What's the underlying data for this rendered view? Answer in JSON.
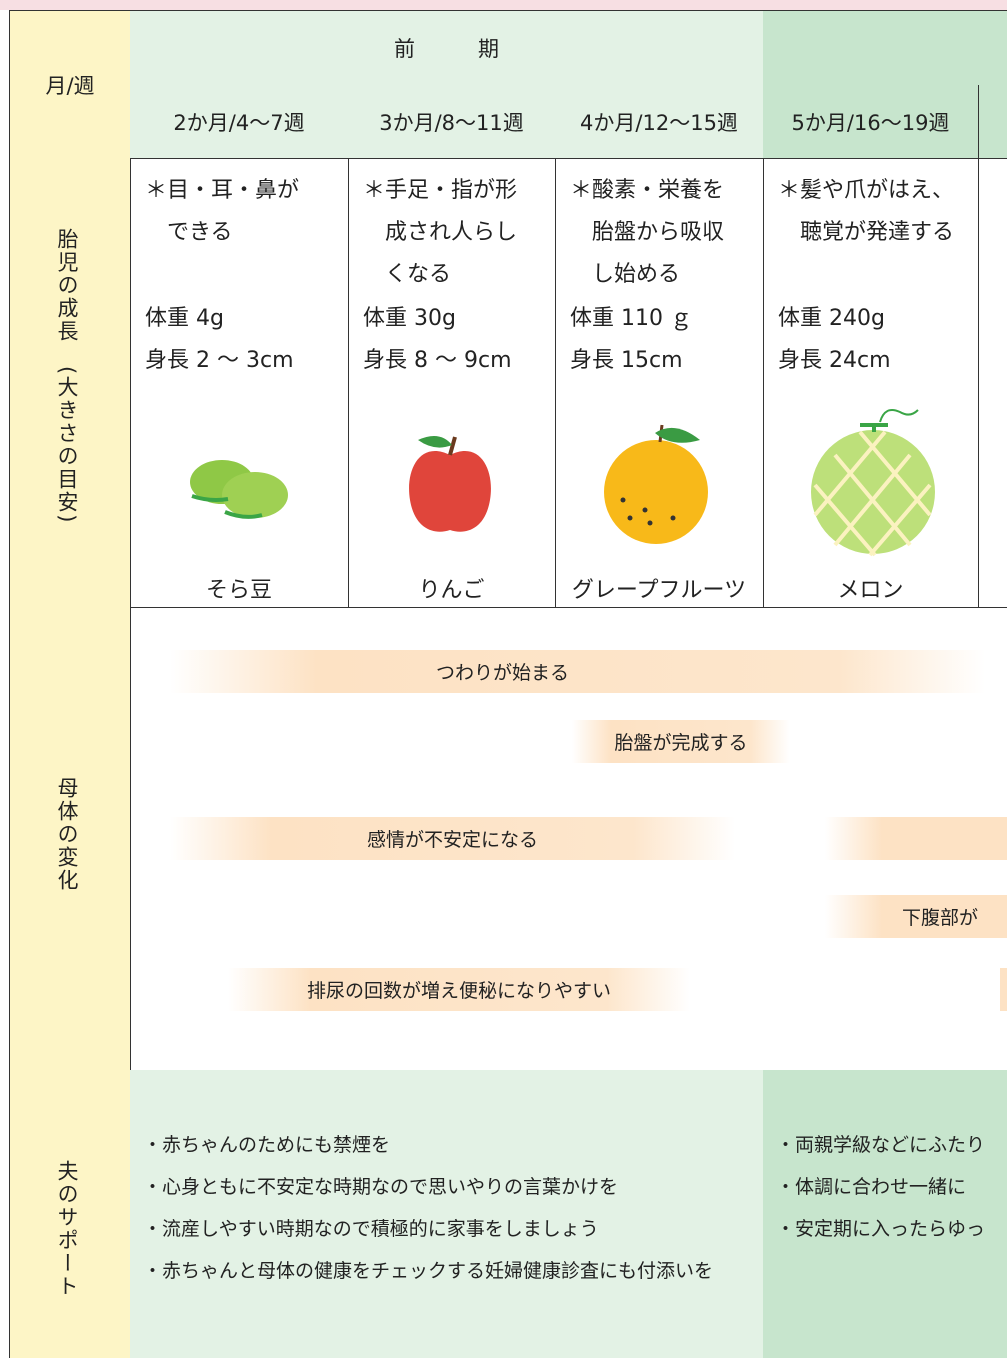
{
  "header": {
    "month_week": "月/週",
    "period": "前　　　期",
    "columns": [
      "2か月/4〜7週",
      "3か月/8〜11週",
      "4か月/12〜15週",
      "5か月/16〜19週"
    ]
  },
  "rows": {
    "growth": "胎児の成長　(大きさの目安)",
    "mother": "母体の変化",
    "support": "夫のサポート"
  },
  "growth": [
    {
      "lines": [
        "＊目・耳・鼻が",
        "　できる"
      ],
      "weight": "体重 4g",
      "length": "身長 2 〜 3cm",
      "fruit": "そら豆"
    },
    {
      "lines": [
        "＊手足・指が形",
        "　成され人らし",
        "　くなる"
      ],
      "weight": "体重 30g",
      "length": "身長 8 〜 9cm",
      "fruit": "りんご"
    },
    {
      "lines": [
        "＊酸素・栄養を",
        "　胎盤から吸収",
        "　し始める"
      ],
      "weight": "体重 110 ｇ",
      "length": "身長 15cm",
      "fruit": "グレープフルーツ"
    },
    {
      "lines": [
        "＊髪や爪がはえ、",
        "　聴覚が発達する"
      ],
      "weight": "体重 240g",
      "length": "身長 24cm",
      "fruit": "メロン"
    }
  ],
  "mother": [
    "つわりが始まる",
    "胎盤が完成する",
    "感情が不安定になる",
    "下腹部が",
    "排尿の回数が増え便秘になりやすい"
  ],
  "support": {
    "early": [
      "・赤ちゃんのためにも禁煙を",
      "・心身ともに不安定な時期なので思いやりの言葉かけを",
      "・流産しやすい時期なので積極的に家事をしましょう",
      "・赤ちゃんと母体の健康をチェックする妊婦健康診査にも付添いを"
    ],
    "mid": [
      "・両親学級などにふたり",
      "・体調に合わせ一緒に",
      "・安定期に入ったらゆっ"
    ]
  }
}
